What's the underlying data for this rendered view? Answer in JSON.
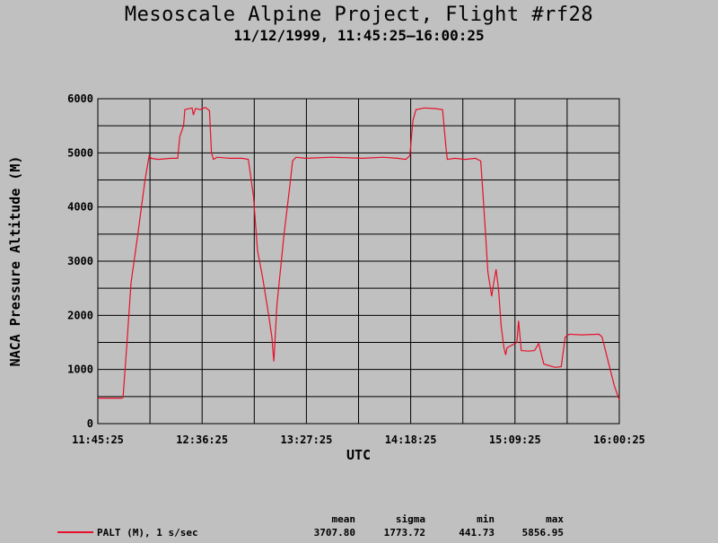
{
  "title": "Mesoscale Alpine Project, Flight #rf28",
  "subtitle": "11/12/1999, 11:45:25–16:00:25",
  "colors": {
    "background": "#c0c0c0",
    "series_line": "#e8102a",
    "grid": "#000000"
  },
  "chart_data": {
    "type": "line",
    "xlabel": "UTC",
    "ylabel": "NACA Pressure Altitude (M)",
    "x_tick_labels": [
      "11:45:25",
      "12:36:25",
      "13:27:25",
      "14:18:25",
      "15:09:25",
      "16:00:25"
    ],
    "x_minor_ticks_per_major": 2,
    "y_ticks": [
      0,
      1000,
      2000,
      3000,
      4000,
      5000,
      6000
    ],
    "ylim": [
      0,
      6000
    ],
    "xlim": [
      "11:45:25",
      "16:00:25"
    ],
    "grid": true,
    "series": [
      {
        "name": "PALT (M), 1 s/sec",
        "color": "#e8102a",
        "points": [
          [
            "11:45:25",
            470
          ],
          [
            "11:57:00",
            470
          ],
          [
            "11:57:45",
            480
          ],
          [
            "11:59:40",
            1500
          ],
          [
            "12:01:40",
            2600
          ],
          [
            "12:05:00",
            3500
          ],
          [
            "12:08:30",
            4500
          ],
          [
            "12:10:30",
            4950
          ],
          [
            "12:11:30",
            4900
          ],
          [
            "12:15:00",
            4880
          ],
          [
            "12:21:00",
            4900
          ],
          [
            "12:24:30",
            4900
          ],
          [
            "12:25:30",
            5300
          ],
          [
            "12:27:20",
            5500
          ],
          [
            "12:28:00",
            5800
          ],
          [
            "12:31:30",
            5830
          ],
          [
            "12:32:10",
            5700
          ],
          [
            "12:33:10",
            5820
          ],
          [
            "12:35:30",
            5800
          ],
          [
            "12:38:00",
            5840
          ],
          [
            "12:40:00",
            5780
          ],
          [
            "12:41:00",
            5000
          ],
          [
            "12:42:00",
            4880
          ],
          [
            "12:43:40",
            4920
          ],
          [
            "12:50:00",
            4900
          ],
          [
            "12:56:00",
            4900
          ],
          [
            "12:59:00",
            4880
          ],
          [
            "13:01:30",
            4200
          ],
          [
            "13:03:30",
            3200
          ],
          [
            "13:06:00",
            2700
          ],
          [
            "13:09:00",
            2000
          ],
          [
            "13:10:30",
            1600
          ],
          [
            "13:11:30",
            1150
          ],
          [
            "13:13:00",
            2200
          ],
          [
            "13:16:30",
            3500
          ],
          [
            "13:19:20",
            4400
          ],
          [
            "13:20:40",
            4850
          ],
          [
            "13:22:20",
            4920
          ],
          [
            "13:27:00",
            4900
          ],
          [
            "13:40:00",
            4920
          ],
          [
            "13:55:00",
            4900
          ],
          [
            "14:05:00",
            4920
          ],
          [
            "14:12:00",
            4900
          ],
          [
            "14:16:00",
            4880
          ],
          [
            "14:18:00",
            4950
          ],
          [
            "14:19:30",
            5600
          ],
          [
            "14:21:00",
            5800
          ],
          [
            "14:25:00",
            5830
          ],
          [
            "14:30:00",
            5820
          ],
          [
            "14:34:00",
            5800
          ],
          [
            "14:35:40",
            5100
          ],
          [
            "14:36:20",
            4880
          ],
          [
            "14:40:00",
            4900
          ],
          [
            "14:45:00",
            4880
          ],
          [
            "14:50:00",
            4900
          ],
          [
            "14:52:40",
            4850
          ],
          [
            "14:53:40",
            4300
          ],
          [
            "14:55:00",
            3500
          ],
          [
            "14:56:10",
            2800
          ],
          [
            "14:57:00",
            2600
          ],
          [
            "14:58:00",
            2350
          ],
          [
            "14:59:00",
            2600
          ],
          [
            "15:00:10",
            2850
          ],
          [
            "15:01:20",
            2500
          ],
          [
            "15:02:40",
            1800
          ],
          [
            "15:04:00",
            1400
          ],
          [
            "15:04:50",
            1270
          ],
          [
            "15:05:30",
            1400
          ],
          [
            "15:10:20",
            1500
          ],
          [
            "15:11:10",
            1900
          ],
          [
            "15:12:30",
            1350
          ],
          [
            "15:16:00",
            1340
          ],
          [
            "15:19:00",
            1350
          ],
          [
            "15:21:00",
            1480
          ],
          [
            "15:23:30",
            1100
          ],
          [
            "15:29:00",
            1040
          ],
          [
            "15:32:00",
            1050
          ],
          [
            "15:34:00",
            1600
          ],
          [
            "15:36:00",
            1650
          ],
          [
            "15:42:00",
            1640
          ],
          [
            "15:50:30",
            1650
          ],
          [
            "15:52:00",
            1600
          ],
          [
            "15:56:00",
            1000
          ],
          [
            "15:58:00",
            700
          ],
          [
            "16:00:25",
            440
          ]
        ]
      }
    ]
  },
  "stats": {
    "headers": [
      "mean",
      "sigma",
      "min",
      "max"
    ],
    "values": [
      "3707.80",
      "1773.72",
      "441.73",
      "5856.95"
    ]
  },
  "legend": {
    "label": "PALT (M), 1 s/sec"
  }
}
